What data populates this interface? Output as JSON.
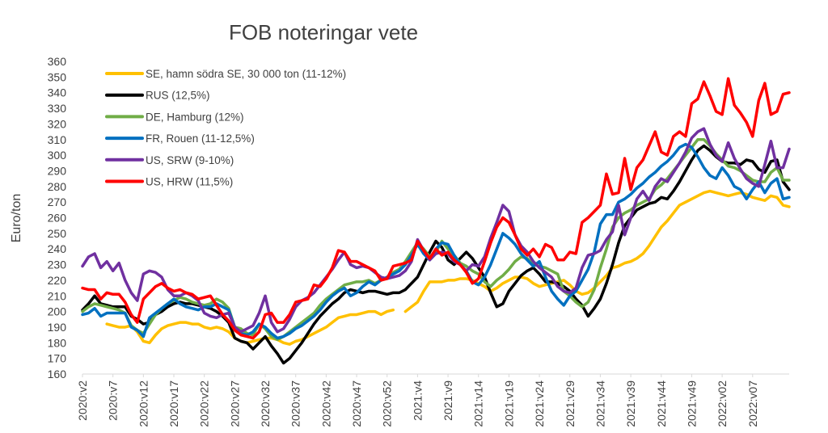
{
  "chart_data": {
    "type": "line",
    "title": "FOB noteringar vete",
    "ylabel": "Euro/ton",
    "xlabel": "",
    "ylim": [
      160,
      360
    ],
    "yticks": [
      160,
      170,
      180,
      190,
      200,
      210,
      220,
      230,
      240,
      250,
      260,
      270,
      280,
      290,
      300,
      310,
      320,
      330,
      340,
      350,
      360
    ],
    "grid": false,
    "legend_position": "top-left",
    "x_tick_labels": [
      "2020:v2",
      "2020:v7",
      "2020:v12",
      "2020:v17",
      "2020:v22",
      "2020:v27",
      "2020:v32",
      "2020:v37",
      "2020:v42",
      "2020:v47",
      "2020:v52",
      "2021:v4",
      "2021:v9",
      "2021:v14",
      "2021:v19",
      "2021:v24",
      "2021:v29",
      "2021:v34",
      "2021:v39",
      "2021:v44",
      "2021:v49",
      "2022:v02",
      "2022:v07"
    ],
    "series": [
      {
        "name": "SE, hamn södra SE, 30 000 ton (11-12%)",
        "color": "#FFC000",
        "values": [
          null,
          null,
          null,
          null,
          192,
          191,
          190,
          190,
          191,
          187,
          181,
          180,
          185,
          189,
          191,
          192,
          193,
          193,
          192,
          192,
          190,
          189,
          190,
          189,
          187,
          183,
          181,
          180,
          181,
          182,
          183,
          183,
          182,
          180,
          179,
          181,
          182,
          184,
          186,
          188,
          190,
          193,
          196,
          197,
          198,
          198,
          199,
          200,
          200,
          198,
          200,
          201,
          null,
          200,
          203,
          206,
          213,
          219,
          219,
          219,
          220,
          220,
          221,
          221,
          220,
          218,
          216,
          213,
          215,
          218,
          220,
          222,
          222,
          221,
          218,
          216,
          217,
          218,
          219,
          220,
          217,
          213,
          211,
          212,
          215,
          219,
          223,
          228,
          229,
          231,
          232,
          234,
          237,
          242,
          248,
          254,
          258,
          263,
          268,
          270,
          272,
          274,
          276,
          277,
          276,
          275,
          274,
          275,
          276,
          275,
          273,
          272,
          271,
          274,
          273,
          268,
          267
        ]
      },
      {
        "name": "RUS (12,5%)",
        "color": "#000000",
        "values": [
          201,
          205,
          210,
          205,
          204,
          203,
          203,
          203,
          197,
          195,
          192,
          193,
          198,
          200,
          203,
          205,
          206,
          205,
          205,
          204,
          203,
          202,
          200,
          197,
          193,
          183,
          181,
          180,
          176,
          180,
          184,
          178,
          173,
          167,
          170,
          175,
          180,
          186,
          192,
          197,
          201,
          205,
          208,
          212,
          214,
          213,
          212,
          213,
          213,
          212,
          211,
          212,
          212,
          214,
          218,
          222,
          230,
          238,
          245,
          241,
          233,
          230,
          234,
          238,
          234,
          228,
          222,
          212,
          203,
          205,
          213,
          218,
          223,
          226,
          228,
          224,
          219,
          219,
          218,
          216,
          213,
          208,
          204,
          197,
          202,
          208,
          218,
          230,
          244,
          255,
          260,
          265,
          267,
          269,
          270,
          273,
          272,
          277,
          283,
          290,
          297,
          303,
          306,
          303,
          299,
          296,
          295,
          295,
          294,
          297,
          296,
          291,
          289,
          296,
          297,
          283,
          278
        ]
      },
      {
        "name": "DE, Hamburg (12%)",
        "color": "#70AD47",
        "values": [
          200,
          203,
          205,
          204,
          203,
          202,
          201,
          199,
          191,
          188,
          186,
          192,
          198,
          202,
          205,
          207,
          209,
          208,
          206,
          205,
          204,
          205,
          208,
          206,
          202,
          190,
          189,
          186,
          185,
          192,
          189,
          184,
          182,
          184,
          187,
          190,
          193,
          196,
          199,
          204,
          208,
          211,
          214,
          217,
          218,
          219,
          219,
          220,
          218,
          220,
          222,
          225,
          227,
          232,
          238,
          244,
          240,
          235,
          238,
          245,
          240,
          236,
          231,
          229,
          226,
          224,
          219,
          216,
          220,
          223,
          227,
          232,
          235,
          234,
          230,
          229,
          228,
          226,
          224,
          213,
          210,
          206,
          203,
          206,
          214,
          228,
          240,
          254,
          260,
          263,
          265,
          268,
          270,
          272,
          278,
          281,
          285,
          290,
          295,
          300,
          305,
          310,
          310,
          306,
          301,
          297,
          293,
          292,
          290,
          287,
          284,
          283,
          283,
          289,
          292,
          284,
          284
        ]
      },
      {
        "name": "FR, Rouen (11-12,5%)",
        "color": "#0070C0",
        "values": [
          198,
          199,
          202,
          197,
          199,
          199,
          199,
          199,
          190,
          188,
          184,
          196,
          199,
          202,
          205,
          208,
          205,
          203,
          202,
          201,
          203,
          203,
          205,
          203,
          201,
          190,
          186,
          185,
          187,
          192,
          190,
          186,
          183,
          184,
          186,
          189,
          191,
          194,
          197,
          201,
          206,
          210,
          213,
          215,
          210,
          212,
          216,
          219,
          217,
          220,
          222,
          224,
          226,
          230,
          236,
          243,
          237,
          233,
          240,
          244,
          243,
          236,
          230,
          226,
          219,
          217,
          222,
          230,
          240,
          250,
          247,
          243,
          237,
          233,
          229,
          232,
          222,
          213,
          208,
          204,
          210,
          213,
          220,
          227,
          238,
          256,
          262,
          262,
          270,
          272,
          275,
          279,
          282,
          286,
          289,
          293,
          296,
          300,
          305,
          307,
          305,
          299,
          292,
          287,
          285,
          292,
          287,
          280,
          278,
          272,
          278,
          283,
          276,
          282,
          285,
          272,
          273
        ]
      },
      {
        "name": "US, SRW (9-10%)",
        "color": "#7030A0",
        "values": [
          229,
          235,
          237,
          228,
          232,
          226,
          231,
          220,
          212,
          207,
          224,
          226,
          225,
          222,
          214,
          210,
          210,
          212,
          210,
          207,
          199,
          197,
          196,
          198,
          199,
          190,
          187,
          189,
          191,
          199,
          210,
          193,
          187,
          189,
          195,
          203,
          207,
          209,
          212,
          217,
          222,
          227,
          233,
          238,
          230,
          228,
          229,
          228,
          225,
          222,
          221,
          222,
          223,
          226,
          232,
          246,
          239,
          233,
          237,
          238,
          237,
          232,
          230,
          226,
          230,
          229,
          235,
          247,
          257,
          268,
          264,
          249,
          242,
          238,
          232,
          228,
          225,
          222,
          216,
          213,
          212,
          215,
          228,
          236,
          237,
          239,
          246,
          251,
          268,
          249,
          260,
          272,
          277,
          271,
          280,
          285,
          283,
          289,
          295,
          302,
          311,
          315,
          317,
          307,
          300,
          296,
          308,
          298,
          291,
          285,
          282,
          280,
          294,
          309,
          292,
          292,
          304
        ]
      },
      {
        "name": "US, HRW (11,5%)",
        "color": "#FF0000",
        "values": [
          215,
          214,
          214,
          208,
          212,
          211,
          211,
          206,
          198,
          193,
          208,
          212,
          216,
          218,
          215,
          213,
          214,
          212,
          211,
          208,
          209,
          210,
          204,
          198,
          194,
          188,
          185,
          184,
          183,
          187,
          198,
          199,
          193,
          193,
          198,
          206,
          207,
          208,
          217,
          216,
          221,
          228,
          239,
          238,
          232,
          232,
          230,
          228,
          226,
          220,
          221,
          229,
          230,
          231,
          233,
          245,
          239,
          234,
          240,
          236,
          238,
          233,
          230,
          225,
          218,
          221,
          232,
          244,
          254,
          260,
          257,
          249,
          240,
          236,
          240,
          235,
          243,
          241,
          233,
          233,
          238,
          237,
          257,
          260,
          264,
          268,
          288,
          275,
          276,
          298,
          278,
          292,
          297,
          306,
          315,
          302,
          300,
          312,
          315,
          312,
          333,
          336,
          347,
          338,
          328,
          326,
          349,
          332,
          327,
          321,
          312,
          335,
          346,
          326,
          328,
          339,
          340
        ]
      }
    ]
  }
}
